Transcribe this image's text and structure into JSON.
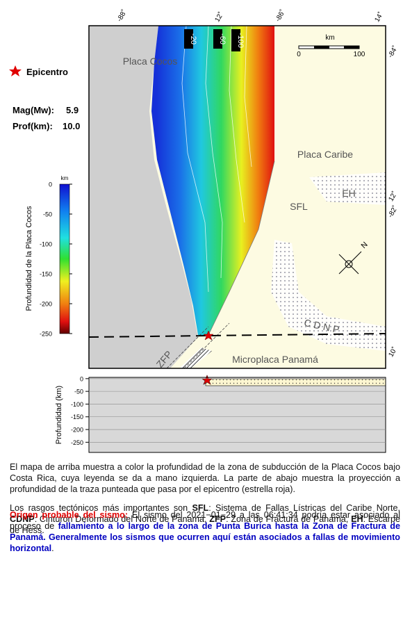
{
  "legend": {
    "epicenter": "Epicentro",
    "mag_label": "Mag(Mw):",
    "mag": "5.9",
    "depth_label": "Prof(km):",
    "depth": "10.0"
  },
  "colorbar": {
    "title": "Profundidad de la Placa Cocos",
    "unit": "km",
    "lim": [
      -250,
      0
    ],
    "ticks": [
      0,
      -50,
      -100,
      -150,
      -200,
      -250
    ]
  },
  "map": {
    "top_coords": [
      "-88˚",
      "12˚",
      "-86˚",
      "14˚"
    ],
    "right_coords": [
      "-84˚",
      "12˚",
      "-82˚",
      "10˚"
    ],
    "contours": [
      "-20",
      "-60",
      "-100"
    ],
    "scale": {
      "unit": "km",
      "start": "0",
      "end": "100"
    },
    "labels": {
      "cocos": "Placa Cocos",
      "caribe": "Placa Caribe",
      "sfl": "SFL",
      "eh": "EH",
      "cdnp": "C D N P",
      "zfp": "ZFP",
      "panama": "Microplaca Panamá",
      "north": "N"
    }
  },
  "section": {
    "ylabel": "Profundidad (km)",
    "ylim": [
      -290,
      5
    ],
    "yticks": [
      0,
      -50,
      -100,
      -150,
      -200,
      -250
    ]
  },
  "text": {
    "p1": "El mapa de arriba muestra a color la profundidad de la zona de subducción de la Placa Cocos bajo Costa Rica, cuya leyenda se da a mano izquierda.  La parte de abajo muestra la proyección a profundidad de la traza punteada que pasa por el epicentro (estrella roja).",
    "p2": [
      "Los rasgos tectónicos más importantes son ",
      "SFL",
      ": Sistema de Fallas Lístricas del Caribe Norte, ",
      "CDNP",
      ": Cinturón Deformado del Norte de Panamá, ",
      "ZFP",
      ": Zona de Fractura de Panamá, ",
      "EH",
      ": Escarpe de Hess."
    ],
    "p3": [
      "Origen probable del sismo:",
      " El sismo del 2021−01−29 a las 06:41:34 podría estar asociado al proceso de ",
      "fallamiento a lo largo de la zona de Punta Burica hasta la Zona de Fractura de Panamá.  Generalmente los sismos que ocurren aquí están asociados a fallas de movimiento horizontal",
      "."
    ]
  }
}
